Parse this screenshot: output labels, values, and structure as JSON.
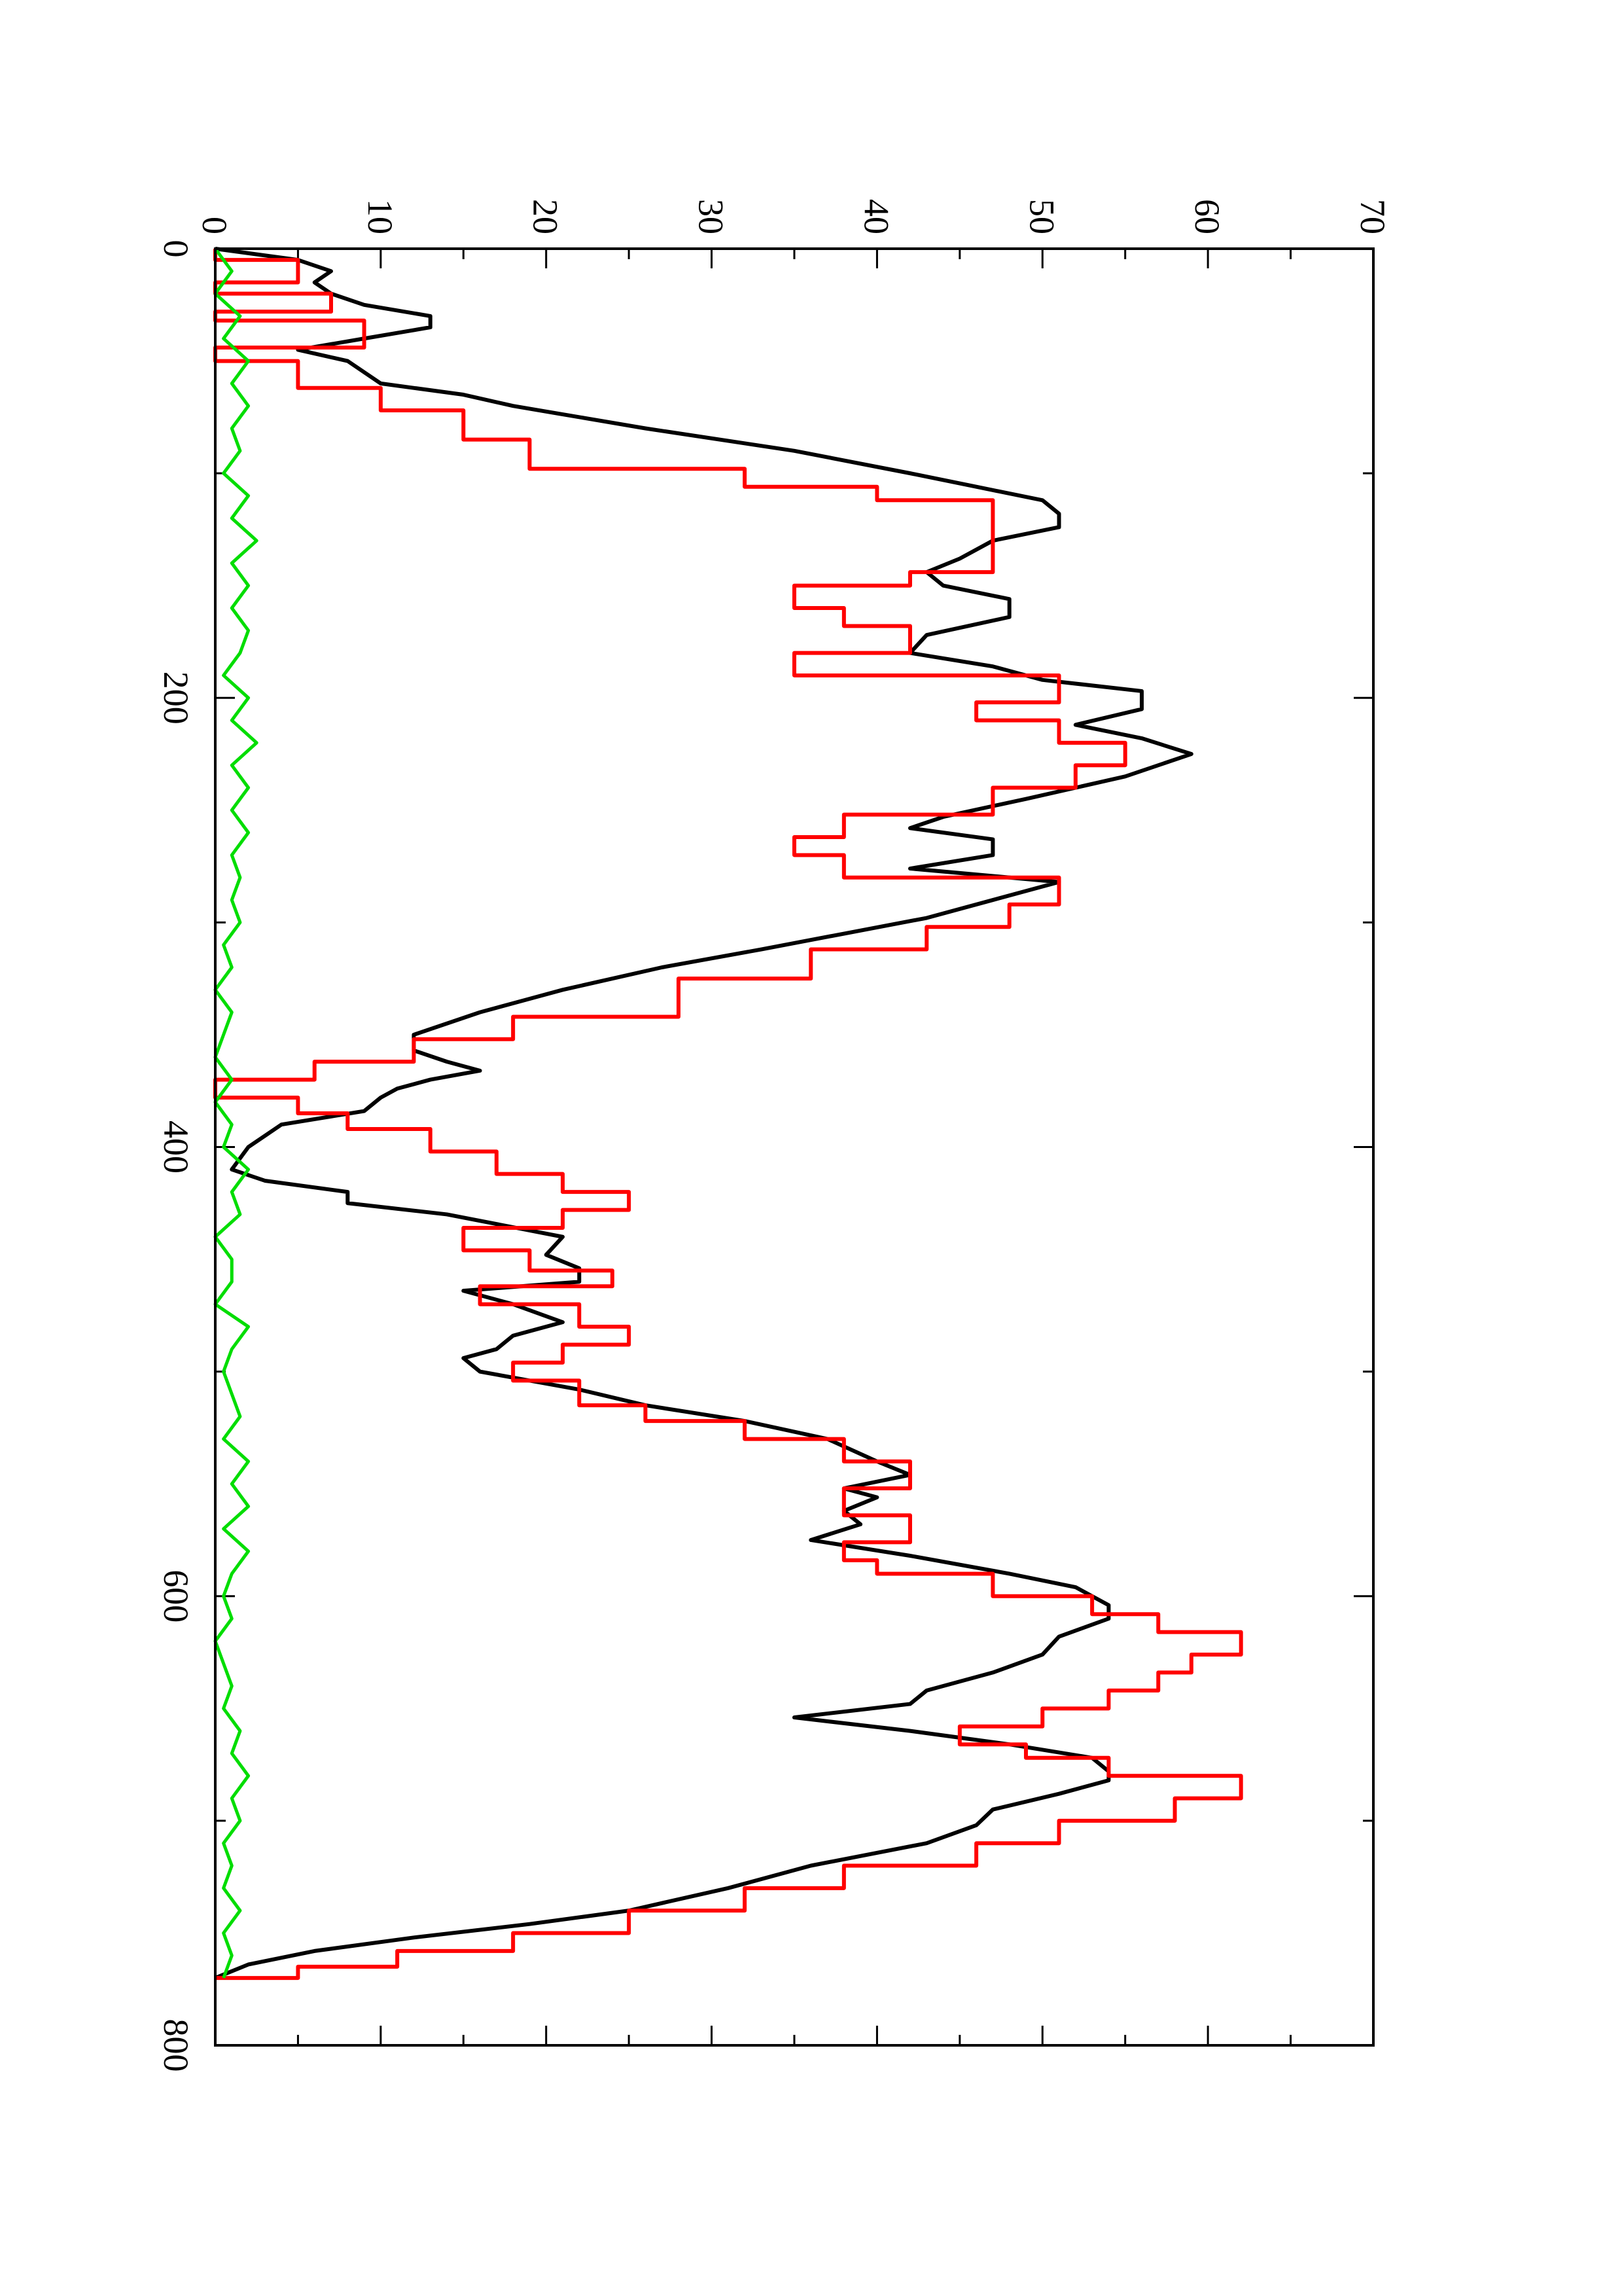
{
  "chart_data": {
    "type": "line",
    "orientation": "rotated-90-ccw",
    "xlim": [
      0,
      800
    ],
    "ylim": [
      0,
      70
    ],
    "x_ticks": [
      "0",
      "200",
      "400",
      "600",
      "800"
    ],
    "y_ticks": [
      "0",
      "10",
      "20",
      "30",
      "40",
      "50",
      "60",
      "70"
    ],
    "grid": false,
    "series": [
      {
        "color": "#000000",
        "style": "smooth",
        "points": [
          [
            0,
            0
          ],
          [
            5,
            5
          ],
          [
            10,
            7
          ],
          [
            15,
            6
          ],
          [
            20,
            7
          ],
          [
            25,
            9
          ],
          [
            30,
            13
          ],
          [
            35,
            13
          ],
          [
            40,
            9
          ],
          [
            45,
            5
          ],
          [
            50,
            8
          ],
          [
            60,
            10
          ],
          [
            65,
            15
          ],
          [
            70,
            18
          ],
          [
            80,
            26
          ],
          [
            90,
            35
          ],
          [
            100,
            42
          ],
          [
            106,
            46
          ],
          [
            112,
            50
          ],
          [
            118,
            51
          ],
          [
            124,
            51
          ],
          [
            130,
            47
          ],
          [
            138,
            45
          ],
          [
            144,
            43
          ],
          [
            150,
            44
          ],
          [
            156,
            48
          ],
          [
            164,
            48
          ],
          [
            172,
            43
          ],
          [
            180,
            42
          ],
          [
            186,
            47
          ],
          [
            192,
            50
          ],
          [
            197,
            56
          ],
          [
            205,
            56
          ],
          [
            212,
            52
          ],
          [
            218,
            56
          ],
          [
            225,
            59
          ],
          [
            235,
            55
          ],
          [
            245,
            49
          ],
          [
            253,
            44
          ],
          [
            258,
            42
          ],
          [
            263,
            47
          ],
          [
            270,
            47
          ],
          [
            276,
            42
          ],
          [
            282,
            51
          ],
          [
            290,
            47
          ],
          [
            298,
            43
          ],
          [
            305,
            38
          ],
          [
            312,
            33
          ],
          [
            320,
            27
          ],
          [
            330,
            21
          ],
          [
            340,
            16
          ],
          [
            350,
            12
          ],
          [
            357,
            12
          ],
          [
            362,
            14
          ],
          [
            366,
            16
          ],
          [
            370,
            13
          ],
          [
            374,
            11
          ],
          [
            378,
            10
          ],
          [
            384,
            9
          ],
          [
            390,
            4
          ],
          [
            395,
            3
          ],
          [
            400,
            2
          ],
          [
            410,
            1
          ],
          [
            415,
            3
          ],
          [
            420,
            8
          ],
          [
            425,
            8
          ],
          [
            430,
            14
          ],
          [
            440,
            21
          ],
          [
            448,
            20
          ],
          [
            454,
            22
          ],
          [
            460,
            22
          ],
          [
            464,
            15
          ],
          [
            470,
            18
          ],
          [
            478,
            21
          ],
          [
            484,
            18
          ],
          [
            490,
            17
          ],
          [
            494,
            15
          ],
          [
            500,
            16
          ],
          [
            508,
            22
          ],
          [
            515,
            26
          ],
          [
            522,
            32
          ],
          [
            530,
            37
          ],
          [
            540,
            40
          ],
          [
            546,
            42
          ],
          [
            552,
            38
          ],
          [
            556,
            40
          ],
          [
            562,
            38
          ],
          [
            568,
            39
          ],
          [
            575,
            36
          ],
          [
            582,
            42
          ],
          [
            590,
            48
          ],
          [
            596,
            52
          ],
          [
            604,
            54
          ],
          [
            610,
            54
          ],
          [
            618,
            51
          ],
          [
            626,
            50
          ],
          [
            634,
            47
          ],
          [
            642,
            43
          ],
          [
            648,
            42
          ],
          [
            654,
            35
          ],
          [
            660,
            42
          ],
          [
            666,
            48
          ],
          [
            672,
            53
          ],
          [
            678,
            54
          ],
          [
            682,
            54
          ],
          [
            688,
            51
          ],
          [
            695,
            47
          ],
          [
            702,
            46
          ],
          [
            710,
            43
          ],
          [
            720,
            36
          ],
          [
            730,
            31
          ],
          [
            740,
            25
          ],
          [
            746,
            19
          ],
          [
            752,
            12
          ],
          [
            758,
            6
          ],
          [
            764,
            2
          ],
          [
            770,
            0
          ]
        ]
      },
      {
        "color": "#ff0000",
        "style": "step",
        "points": [
          [
            0,
            0
          ],
          [
            5,
            5
          ],
          [
            15,
            0
          ],
          [
            20,
            7
          ],
          [
            28,
            0
          ],
          [
            32,
            9
          ],
          [
            44,
            0
          ],
          [
            50,
            5
          ],
          [
            62,
            10
          ],
          [
            72,
            15
          ],
          [
            85,
            19
          ],
          [
            98,
            32
          ],
          [
            106,
            40
          ],
          [
            112,
            47
          ],
          [
            144,
            42
          ],
          [
            150,
            35
          ],
          [
            160,
            38
          ],
          [
            168,
            42
          ],
          [
            180,
            35
          ],
          [
            190,
            51
          ],
          [
            202,
            46
          ],
          [
            210,
            51
          ],
          [
            220,
            55
          ],
          [
            230,
            52
          ],
          [
            240,
            47
          ],
          [
            252,
            38
          ],
          [
            262,
            35
          ],
          [
            270,
            38
          ],
          [
            280,
            51
          ],
          [
            292,
            48
          ],
          [
            302,
            43
          ],
          [
            312,
            36
          ],
          [
            325,
            28
          ],
          [
            342,
            18
          ],
          [
            352,
            12
          ],
          [
            362,
            6
          ],
          [
            370,
            0
          ],
          [
            378,
            5
          ],
          [
            385,
            8
          ],
          [
            392,
            13
          ],
          [
            402,
            17
          ],
          [
            412,
            21
          ],
          [
            420,
            25
          ],
          [
            428,
            21
          ],
          [
            436,
            15
          ],
          [
            446,
            19
          ],
          [
            455,
            24
          ],
          [
            462,
            16
          ],
          [
            470,
            22
          ],
          [
            480,
            25
          ],
          [
            488,
            21
          ],
          [
            496,
            18
          ],
          [
            504,
            22
          ],
          [
            515,
            26
          ],
          [
            522,
            32
          ],
          [
            530,
            38
          ],
          [
            540,
            42
          ],
          [
            552,
            38
          ],
          [
            564,
            42
          ],
          [
            576,
            38
          ],
          [
            584,
            40
          ],
          [
            590,
            47
          ],
          [
            600,
            53
          ],
          [
            608,
            57
          ],
          [
            616,
            62
          ],
          [
            626,
            59
          ],
          [
            634,
            57
          ],
          [
            642,
            54
          ],
          [
            650,
            50
          ],
          [
            658,
            45
          ],
          [
            666,
            49
          ],
          [
            672,
            54
          ],
          [
            680,
            62
          ],
          [
            690,
            58
          ],
          [
            700,
            51
          ],
          [
            710,
            46
          ],
          [
            720,
            38
          ],
          [
            730,
            32
          ],
          [
            740,
            25
          ],
          [
            750,
            18
          ],
          [
            758,
            11
          ],
          [
            765,
            5
          ],
          [
            770,
            0
          ]
        ]
      },
      {
        "color": "#00dd00",
        "style": "noise",
        "points": [
          [
            0,
            0
          ],
          [
            10,
            1
          ],
          [
            20,
            0
          ],
          [
            30,
            1.5
          ],
          [
            40,
            0.5
          ],
          [
            50,
            2
          ],
          [
            60,
            1
          ],
          [
            70,
            2
          ],
          [
            80,
            1
          ],
          [
            90,
            1.5
          ],
          [
            100,
            0.5
          ],
          [
            110,
            2
          ],
          [
            120,
            1
          ],
          [
            130,
            2.5
          ],
          [
            140,
            1
          ],
          [
            150,
            2
          ],
          [
            160,
            1
          ],
          [
            170,
            2
          ],
          [
            180,
            1.5
          ],
          [
            190,
            0.5
          ],
          [
            200,
            2
          ],
          [
            210,
            1
          ],
          [
            220,
            2.5
          ],
          [
            230,
            1
          ],
          [
            240,
            2
          ],
          [
            250,
            1
          ],
          [
            260,
            2
          ],
          [
            270,
            1
          ],
          [
            280,
            1.5
          ],
          [
            290,
            1
          ],
          [
            300,
            1.5
          ],
          [
            310,
            0.5
          ],
          [
            320,
            1
          ],
          [
            330,
            0
          ],
          [
            340,
            1
          ],
          [
            350,
            0.5
          ],
          [
            360,
            0
          ],
          [
            370,
            1
          ],
          [
            380,
            0
          ],
          [
            390,
            1
          ],
          [
            400,
            0.5
          ],
          [
            410,
            2
          ],
          [
            420,
            1
          ],
          [
            430,
            1.5
          ],
          [
            440,
            0
          ],
          [
            450,
            1
          ],
          [
            460,
            1
          ],
          [
            470,
            0
          ],
          [
            480,
            2
          ],
          [
            490,
            1
          ],
          [
            500,
            0.5
          ],
          [
            510,
            1
          ],
          [
            520,
            1.5
          ],
          [
            530,
            0.5
          ],
          [
            540,
            2
          ],
          [
            550,
            1
          ],
          [
            560,
            2
          ],
          [
            570,
            0.5
          ],
          [
            580,
            2
          ],
          [
            590,
            1
          ],
          [
            600,
            0.5
          ],
          [
            610,
            1
          ],
          [
            620,
            0
          ],
          [
            630,
            0.5
          ],
          [
            640,
            1
          ],
          [
            650,
            0.5
          ],
          [
            660,
            1.5
          ],
          [
            670,
            1
          ],
          [
            680,
            2
          ],
          [
            690,
            1
          ],
          [
            700,
            1.5
          ],
          [
            710,
            0.5
          ],
          [
            720,
            1
          ],
          [
            730,
            0.5
          ],
          [
            740,
            1.5
          ],
          [
            750,
            0.5
          ],
          [
            760,
            1
          ],
          [
            770,
            0.5
          ]
        ]
      }
    ]
  }
}
